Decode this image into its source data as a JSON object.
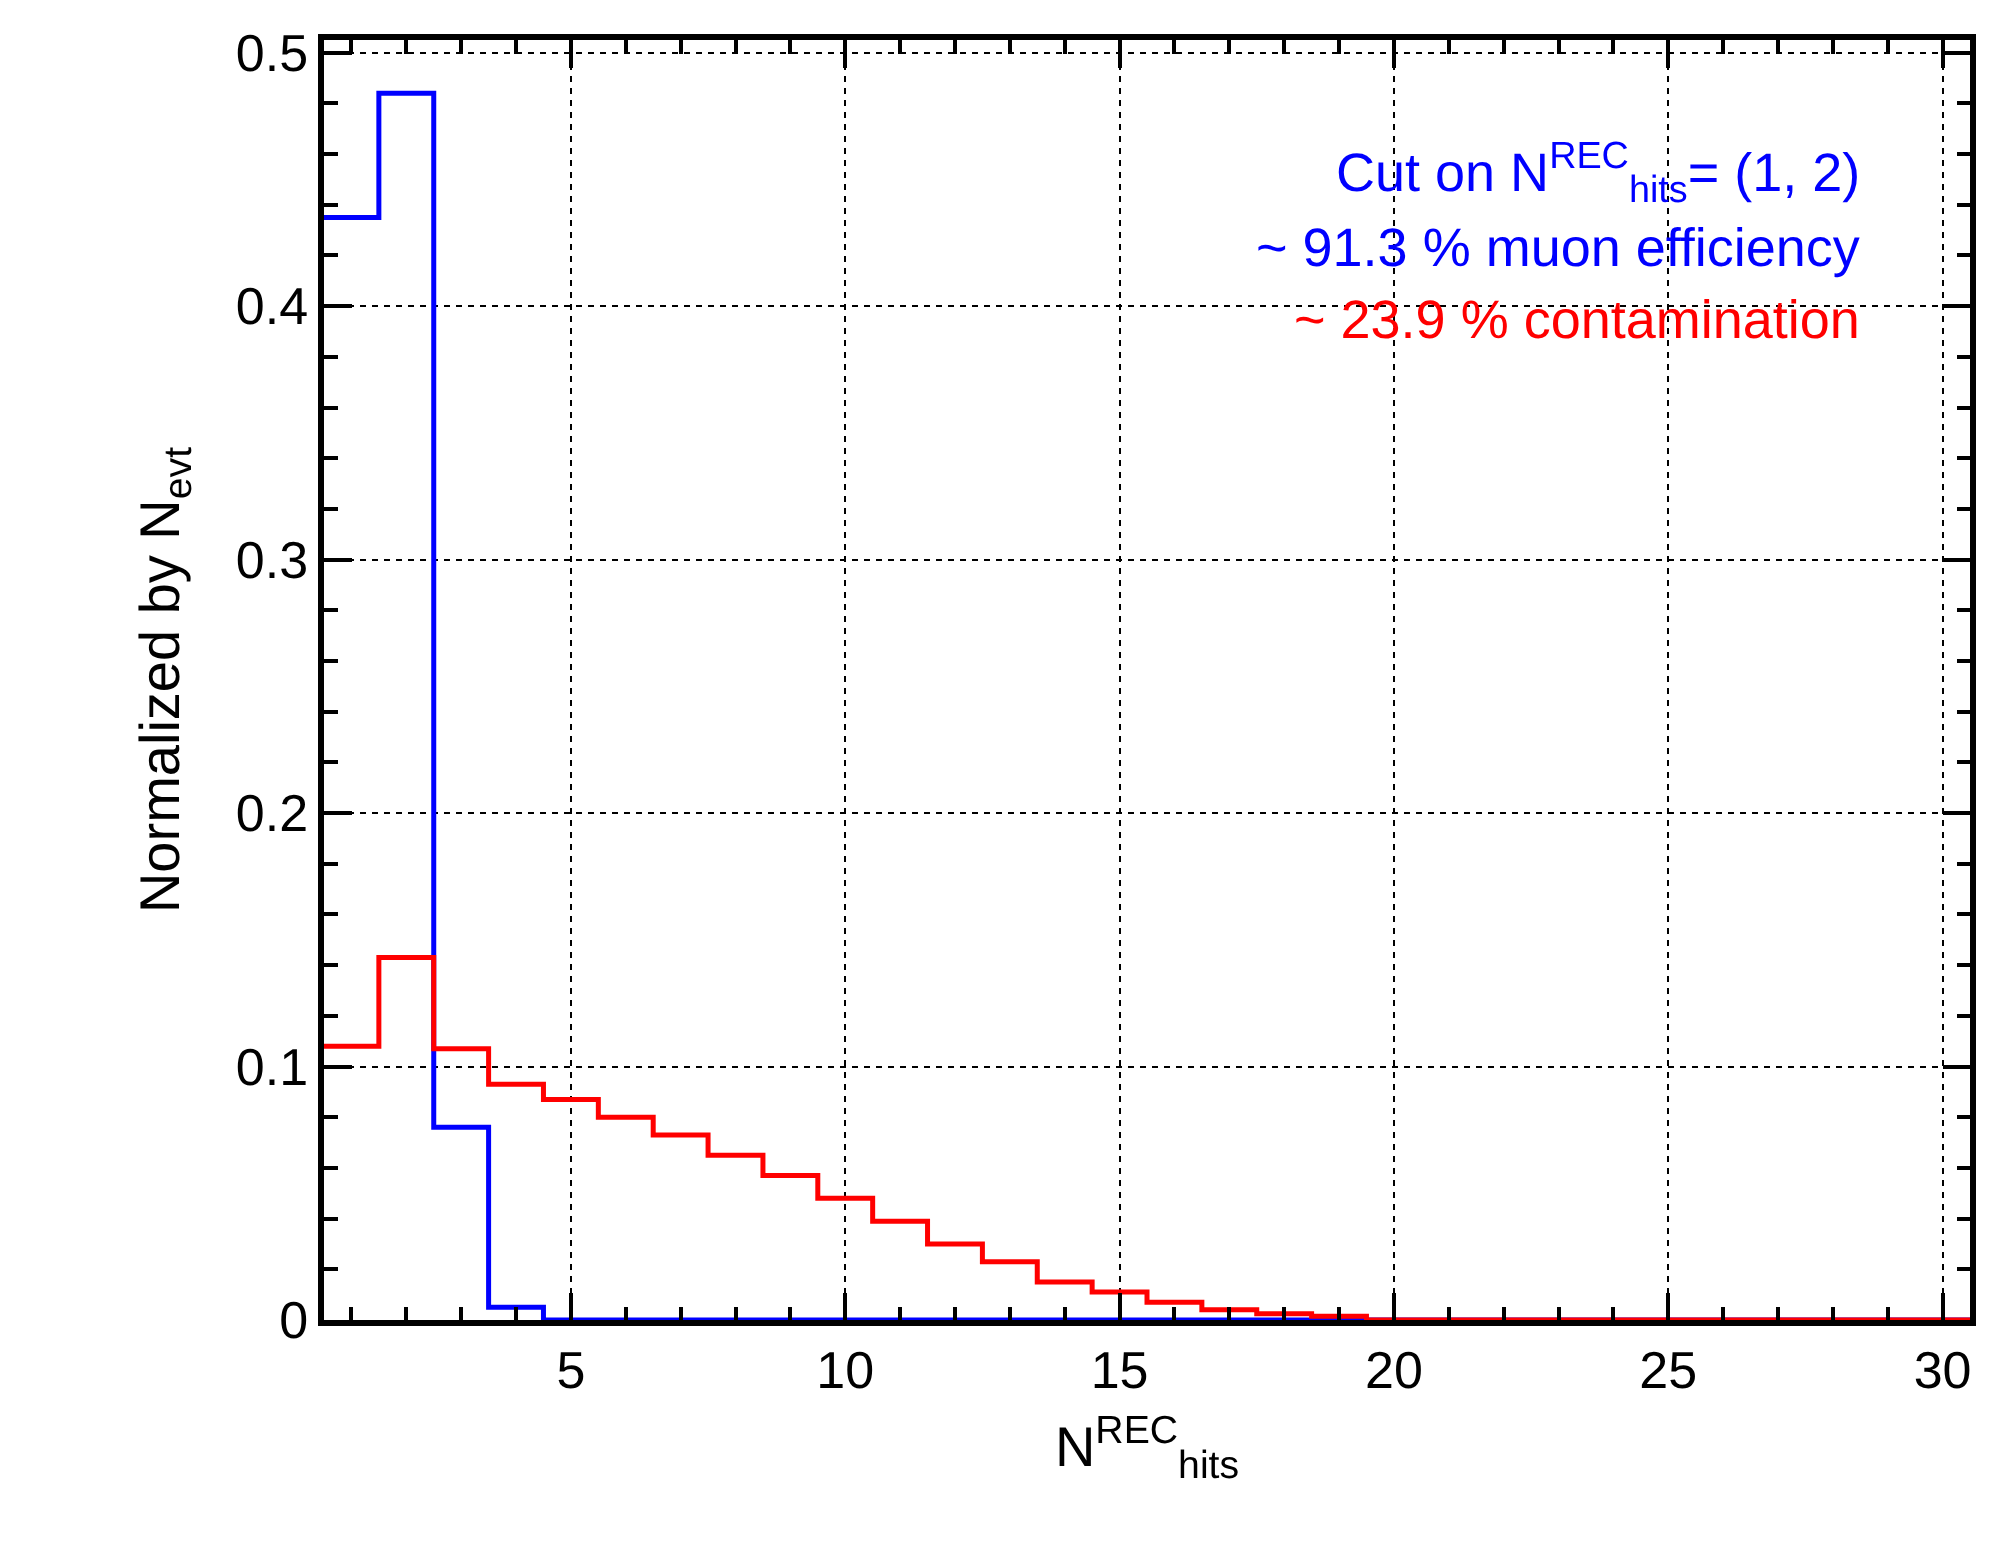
{
  "chart_data": {
    "type": "histogram",
    "xlabel": "N$^{REC}$$_{hits}$",
    "ylabel": "Normalized by N$_{evt}$",
    "bins": [
      0.5,
      1.5,
      2.5,
      3.5,
      4.5,
      5.5,
      6.5,
      7.5,
      8.5,
      9.5,
      10.5,
      11.5,
      12.5,
      13.5,
      14.5,
      15.5,
      16.5,
      17.5,
      18.5,
      19.5,
      20.5,
      21.5,
      22.5,
      23.5,
      24.5,
      25.5,
      26.5,
      27.5,
      28.5,
      29.5,
      30.5
    ],
    "series": [
      {
        "color": "#0000ff",
        "values": [
          0.435,
          0.484,
          0.076,
          0.005,
          0,
          0,
          0,
          0,
          0,
          0,
          0,
          0,
          0,
          0,
          0,
          0,
          0,
          0,
          0,
          0,
          0,
          0,
          0,
          0,
          0,
          0,
          0,
          0,
          0,
          0
        ]
      },
      {
        "color": "#ff0000",
        "values": [
          0.108,
          0.143,
          0.107,
          0.093,
          0.087,
          0.08,
          0.073,
          0.065,
          0.057,
          0.048,
          0.039,
          0.03,
          0.023,
          0.015,
          0.011,
          0.007,
          0.004,
          0.0025,
          0.0015,
          0,
          0,
          0,
          0,
          0,
          0,
          0,
          0,
          0,
          0,
          0
        ]
      }
    ],
    "annotations": [
      "Cut on N$^{REC}$$_{hits}$= (1, 2)",
      "~ 91.3 % muon efficiency",
      "~ 23.9 % contamination"
    ],
    "xlim": [
      0.5,
      30.5
    ],
    "xticks": [
      5,
      10,
      15,
      20,
      25,
      30
    ],
    "ylim": [
      0,
      0.505
    ],
    "yticks": [
      0,
      0.1,
      0.2,
      0.3,
      0.4,
      0.5
    ],
    "grid": true,
    "line_style": "solid"
  }
}
